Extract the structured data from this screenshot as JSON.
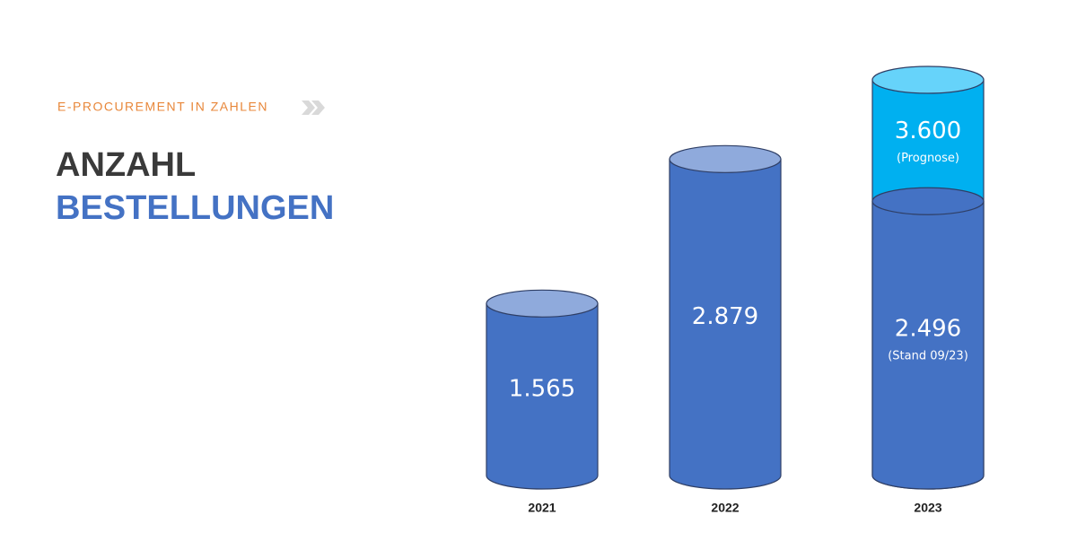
{
  "chart_data": {
    "type": "cylinder",
    "kicker": "E-PROCUREMENT IN ZAHLEN",
    "title": "ANZAHL",
    "title_highlight": "BESTELLUNGEN",
    "categories": [
      "2021",
      "2022",
      "2023"
    ],
    "ylim": [
      0,
      4000
    ],
    "series": [
      {
        "color": "#4472c4",
        "cap_color": "#8faadc",
        "values": [
          1565,
          2879,
          2496
        ],
        "value_labels": [
          "1.565",
          "2.879",
          "2.496"
        ],
        "notes": [
          null,
          null,
          "(Stand 09/23)"
        ]
      },
      {
        "color": "#00b0f0",
        "cap_color": "#66d3fa",
        "values": [
          null,
          null,
          3600
        ],
        "value_labels": [
          null,
          null,
          "3.600"
        ],
        "notes": [
          null,
          null,
          "(Prognose)"
        ]
      }
    ]
  }
}
